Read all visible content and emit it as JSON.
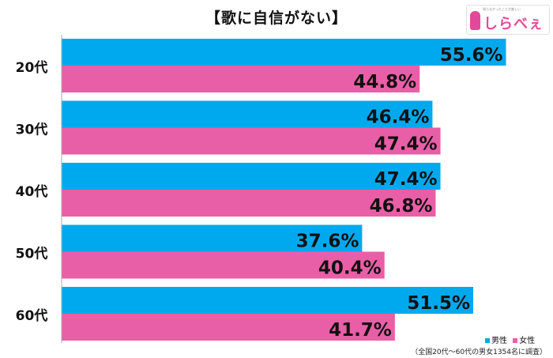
{
  "chart_data": {
    "type": "bar",
    "orientation": "horizontal",
    "title": "【歌に自信がない】",
    "categories": [
      "20代",
      "30代",
      "40代",
      "50代",
      "60代"
    ],
    "series": [
      {
        "name": "男性",
        "values": [
          55.6,
          46.4,
          47.4,
          37.6,
          51.5
        ],
        "color": "#00a9ee"
      },
      {
        "name": "女性",
        "values": [
          44.8,
          47.4,
          46.8,
          40.4,
          41.7
        ],
        "color": "#e95fa7"
      }
    ],
    "value_labels": {
      "male": [
        "55.6%",
        "46.4%",
        "47.4%",
        "37.6%",
        "51.5%"
      ],
      "female": [
        "44.8%",
        "47.4%",
        "46.8%",
        "40.4%",
        "41.7%"
      ]
    },
    "xlim": [
      0,
      60
    ],
    "grid": false,
    "legend": "bottom-right",
    "footnote": "（全国20代～60代の男女1354名に調査）"
  },
  "logo": {
    "tagline": "知らなかったことが楽しい",
    "text": "しらべぇ"
  }
}
